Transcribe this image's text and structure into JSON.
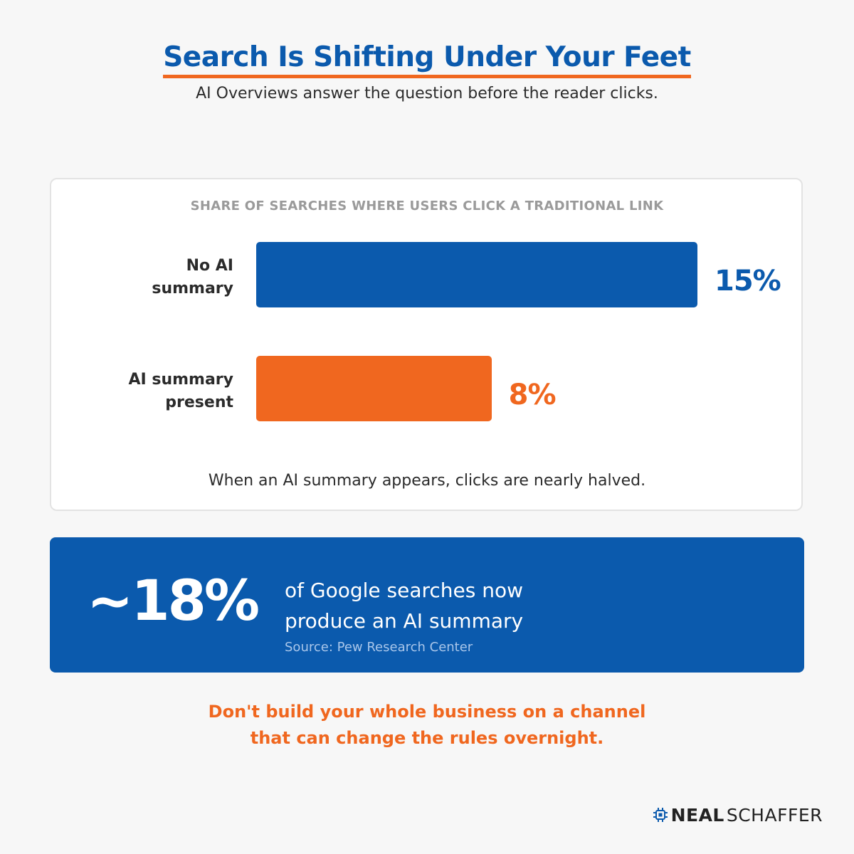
{
  "header": {
    "title": "Search Is Shifting Under Your Feet",
    "subtitle": "AI Overviews answer the question before the reader clicks."
  },
  "chart_data": {
    "type": "bar",
    "orientation": "horizontal",
    "title": "SHARE OF SEARCHES WHERE USERS CLICK A TRADITIONAL LINK",
    "categories": [
      [
        "No AI",
        "summary"
      ],
      [
        "AI summary",
        "present"
      ]
    ],
    "values": [
      15,
      8
    ],
    "value_labels": [
      "15%",
      "8%"
    ],
    "unit": "%",
    "colors": [
      "#0b5aad",
      "#f0671f"
    ],
    "xlim": [
      0,
      15
    ],
    "grid": false,
    "legend": "none",
    "note": "When an AI summary appears, clicks are nearly halved."
  },
  "stat": {
    "value": "~18%",
    "text_lines": [
      "of Google searches now",
      "produce an AI summary"
    ],
    "source": "Source: Pew Research Center"
  },
  "takeaway": {
    "lines": [
      "Don't build your whole business on a channel",
      "that can change the rules overnight."
    ]
  },
  "brand": {
    "name_bold": "NEAL",
    "name_light": "SCHAFFER",
    "icon": "circuit-chip-icon"
  },
  "colors": {
    "primary_blue": "#0b5aad",
    "accent_orange": "#f0671f",
    "background": "#f7f7f7"
  }
}
